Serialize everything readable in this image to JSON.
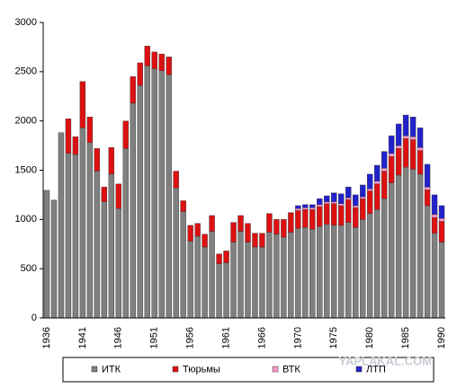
{
  "chart_data": {
    "type": "stacked_bar",
    "categories": [
      "1936",
      null,
      null,
      null,
      null,
      "1941",
      null,
      null,
      null,
      null,
      "1946",
      null,
      null,
      null,
      null,
      "1951",
      null,
      null,
      null,
      null,
      "1956",
      null,
      null,
      null,
      null,
      "1961",
      null,
      null,
      null,
      null,
      "1966",
      null,
      null,
      null,
      null,
      "1970",
      null,
      null,
      null,
      null,
      "1975",
      null,
      null,
      null,
      null,
      "1980",
      null,
      null,
      null,
      null,
      "1985",
      null,
      null,
      null,
      null,
      "1990"
    ],
    "series": [
      {
        "name": "ИТК",
        "color": "#808080",
        "values": [
          1296,
          1196,
          1881,
          1672,
          1660,
          1930,
          1780,
          1490,
          1180,
          1460,
          1110,
          1720,
          2180,
          2360,
          2560,
          2530,
          2510,
          2470,
          1320,
          1080,
          780,
          830,
          720,
          880,
          550,
          560,
          770,
          880,
          770,
          720,
          720,
          870,
          850,
          820,
          870,
          910,
          920,
          900,
          930,
          950,
          940,
          940,
          970,
          920,
          1000,
          1060,
          1100,
          1210,
          1370,
          1450,
          1530,
          1510,
          1460,
          1140,
          860,
          770
        ]
      },
      {
        "name": "Тюрьмы",
        "color": "#dd1111",
        "values": [
          null,
          null,
          null,
          350,
          180,
          470,
          260,
          230,
          150,
          270,
          250,
          280,
          270,
          230,
          200,
          170,
          170,
          180,
          170,
          110,
          160,
          130,
          130,
          160,
          100,
          120,
          200,
          160,
          190,
          140,
          140,
          190,
          150,
          180,
          200,
          180,
          180,
          200,
          200,
          210,
          220,
          200,
          230,
          200,
          210,
          230,
          260,
          280,
          270,
          270,
          290,
          300,
          240,
          160,
          160,
          210
        ]
      },
      {
        "name": "ВТК",
        "color": "#ff99cc",
        "values": [
          null,
          null,
          null,
          null,
          null,
          null,
          null,
          null,
          null,
          null,
          null,
          null,
          null,
          null,
          null,
          null,
          null,
          null,
          null,
          null,
          null,
          null,
          null,
          null,
          null,
          null,
          null,
          null,
          null,
          null,
          null,
          null,
          null,
          null,
          null,
          20,
          20,
          20,
          20,
          20,
          20,
          20,
          20,
          20,
          20,
          20,
          30,
          30,
          30,
          30,
          30,
          30,
          30,
          30,
          30,
          30
        ]
      },
      {
        "name": "ЛТП",
        "color": "#2222cc",
        "values": [
          null,
          null,
          null,
          null,
          null,
          null,
          null,
          null,
          null,
          null,
          null,
          null,
          null,
          null,
          null,
          null,
          null,
          null,
          null,
          null,
          null,
          null,
          null,
          null,
          null,
          null,
          null,
          null,
          null,
          null,
          null,
          null,
          null,
          null,
          null,
          30,
          30,
          30,
          60,
          60,
          90,
          100,
          110,
          110,
          120,
          150,
          160,
          170,
          180,
          220,
          210,
          200,
          200,
          230,
          200,
          130
        ]
      }
    ],
    "ylim": [
      0,
      3000
    ],
    "yticks": [
      0,
      500,
      1000,
      1500,
      2000,
      2500,
      3000
    ],
    "watermark": "YAPLAKAL.COM"
  }
}
